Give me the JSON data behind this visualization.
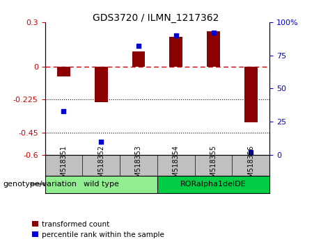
{
  "title": "GDS3720 / ILMN_1217362",
  "samples": [
    "GSM518351",
    "GSM518352",
    "GSM518353",
    "GSM518354",
    "GSM518355",
    "GSM518356"
  ],
  "red_values": [
    -0.07,
    -0.24,
    0.1,
    0.2,
    0.24,
    -0.38
  ],
  "blue_values": [
    33,
    10,
    82,
    90,
    92,
    2
  ],
  "ylim_left": [
    -0.6,
    0.3
  ],
  "ylim_right": [
    0,
    100
  ],
  "yticks_left": [
    0.3,
    0,
    -0.225,
    -0.45,
    -0.6
  ],
  "yticks_right": [
    100,
    75,
    50,
    25,
    0
  ],
  "hlines_dotted": [
    -0.225,
    -0.45
  ],
  "hline_dashed": 0,
  "bar_color": "#8B0000",
  "dot_color": "#0000CD",
  "genotype_labels": [
    "wild type",
    "RORalpha1delDE"
  ],
  "genotype_colors": [
    "#90EE90",
    "#00CC44"
  ],
  "legend_items": [
    "transformed count",
    "percentile rank within the sample"
  ],
  "legend_colors": [
    "#8B0000",
    "#0000CD"
  ],
  "label_area_color": "#C0C0C0",
  "genotype_text": "genotype/variation"
}
